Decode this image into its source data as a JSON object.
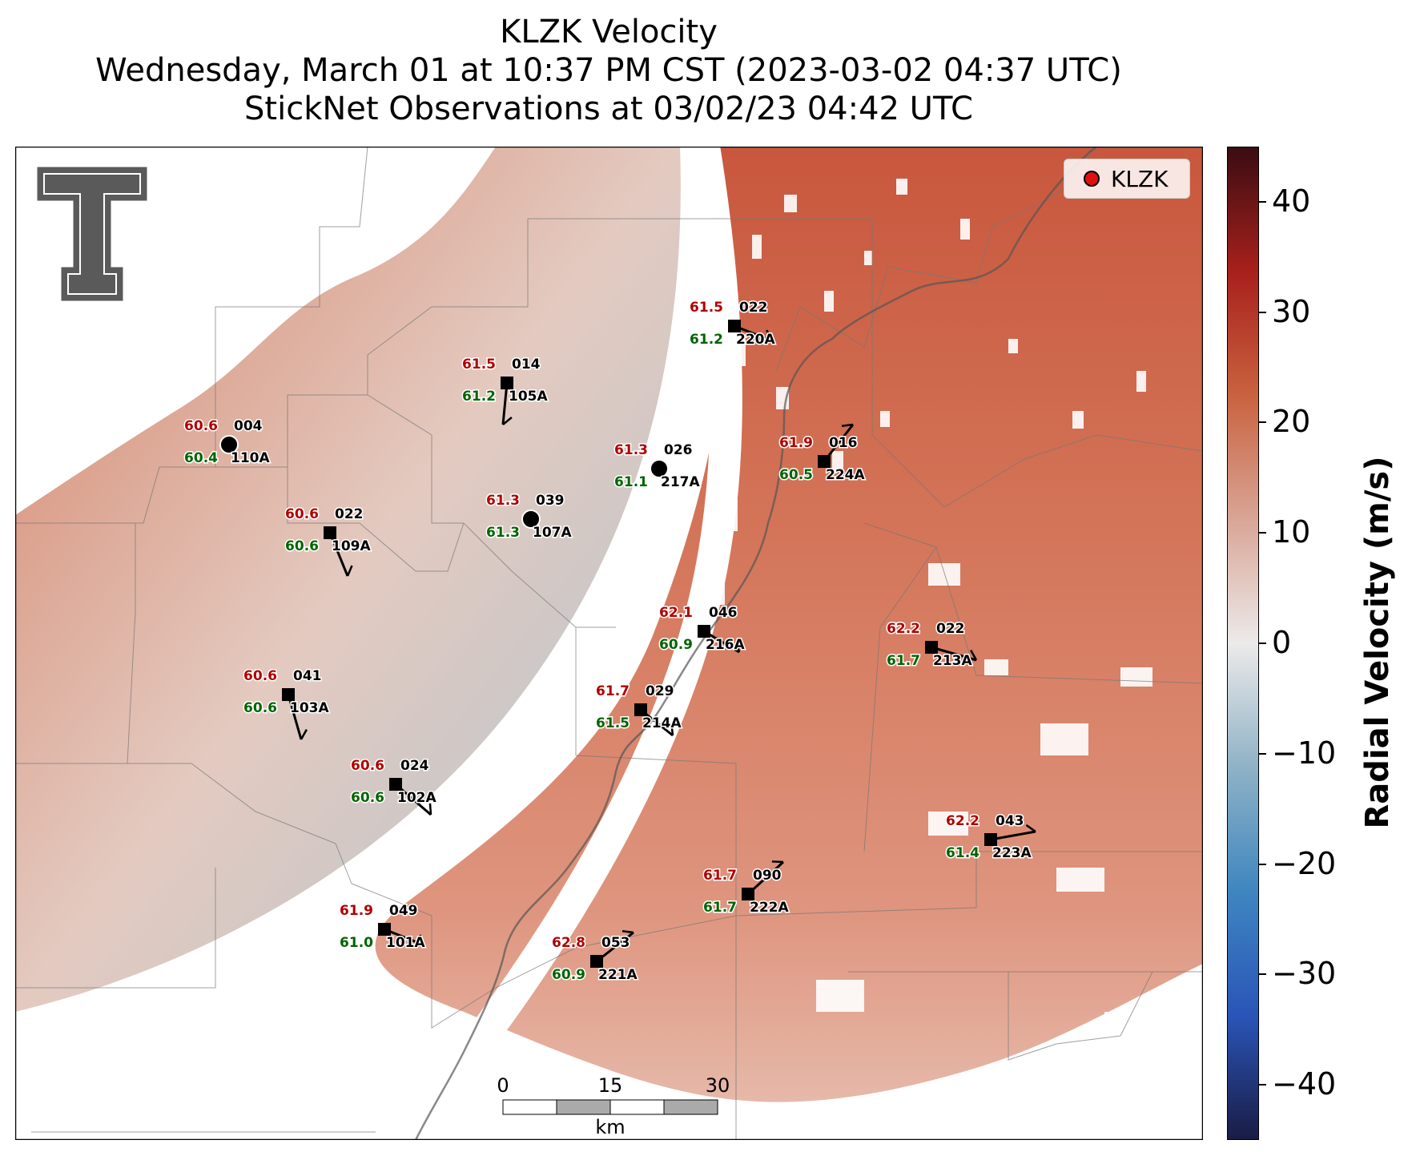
{
  "title": {
    "line1": "KLZK Velocity",
    "line2": "Wednesday, March 01 at 10:37 PM CST (2023-03-02 04:37 UTC)",
    "line3": "StickNet Observations at 03/02/23 04:42 UTC"
  },
  "legend": {
    "label": "KLZK",
    "marker_color": "#e01010"
  },
  "colorbar": {
    "label": "Radial Velocity (m/s)",
    "ticks": [
      "40",
      "30",
      "20",
      "10",
      "0",
      "−10",
      "−20",
      "−30",
      "−40"
    ],
    "tick_values": [
      40,
      30,
      20,
      10,
      0,
      -10,
      -20,
      -30,
      -40
    ],
    "range": [
      -45,
      45
    ],
    "colors": [
      "#1a1c45",
      "#2a55b8",
      "#3f86c0",
      "#8fb2c6",
      "#eceaea",
      "#d9a596",
      "#c9623f",
      "#a8201c",
      "#3a0d12"
    ]
  },
  "scalebar": {
    "ticks": [
      "0",
      "15",
      "30"
    ],
    "unit": "km"
  },
  "logo": {
    "name": "texas-tech-double-t-logo"
  },
  "stations": [
    {
      "id": "110A",
      "t": "60.6",
      "td": "60.4",
      "dir": "004",
      "shape": "circle"
    },
    {
      "id": "105A",
      "t": "61.5",
      "td": "61.2",
      "dir": "014",
      "shape": "square"
    },
    {
      "id": "220A",
      "t": "61.5",
      "td": "61.2",
      "dir": "022",
      "shape": "square"
    },
    {
      "id": "217A",
      "t": "61.3",
      "td": "61.1",
      "dir": "026",
      "shape": "circle"
    },
    {
      "id": "224A",
      "t": "61.9",
      "td": "60.5",
      "dir": "016",
      "shape": "square"
    },
    {
      "id": "109A",
      "t": "60.6",
      "td": "60.6",
      "dir": "022",
      "shape": "square"
    },
    {
      "id": "107A",
      "t": "61.3",
      "td": "61.3",
      "dir": "039",
      "shape": "circle"
    },
    {
      "id": "216A",
      "t": "62.1",
      "td": "60.9",
      "dir": "046",
      "shape": "square"
    },
    {
      "id": "213A",
      "t": "62.2",
      "td": "61.7",
      "dir": "022",
      "shape": "square"
    },
    {
      "id": "103A",
      "t": "60.6",
      "td": "60.6",
      "dir": "041",
      "shape": "square"
    },
    {
      "id": "214A",
      "t": "61.7",
      "td": "61.5",
      "dir": "029",
      "shape": "square"
    },
    {
      "id": "102A",
      "t": "60.6",
      "td": "60.6",
      "dir": "024",
      "shape": "square"
    },
    {
      "id": "223A",
      "t": "62.2",
      "td": "61.4",
      "dir": "043",
      "shape": "square"
    },
    {
      "id": "222A",
      "t": "61.7",
      "td": "61.7",
      "dir": "090",
      "shape": "square"
    },
    {
      "id": "101A",
      "t": "61.9",
      "td": "61.0",
      "dir": "049",
      "shape": "square"
    },
    {
      "id": "221A",
      "t": "62.8",
      "td": "60.9",
      "dir": "053",
      "shape": "square"
    }
  ]
}
